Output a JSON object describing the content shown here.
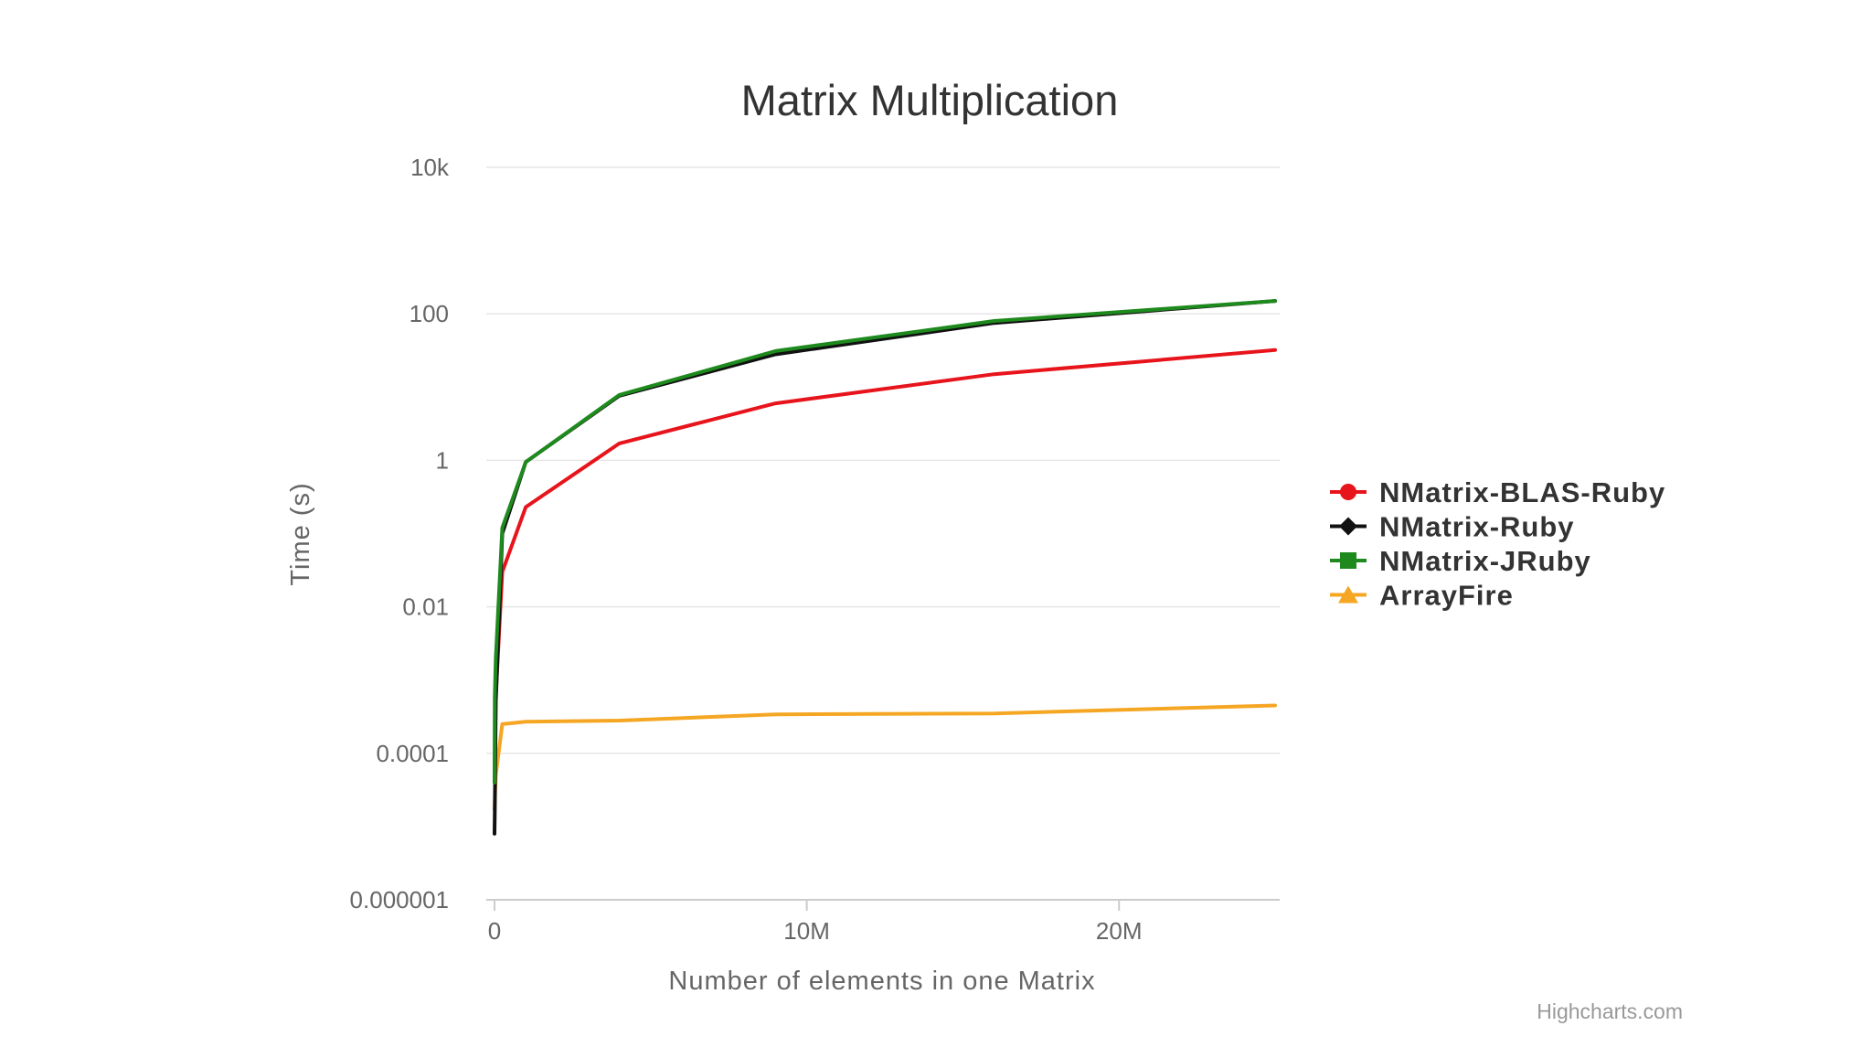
{
  "chart_data": {
    "type": "line",
    "title": "Matrix Multiplication",
    "xlabel": "Number of elements in one Matrix",
    "ylabel": "Time (s)",
    "y_scale": "log",
    "ylim": [
      1e-06,
      10000
    ],
    "xlim": [
      0,
      25000000
    ],
    "y_ticks": [
      {
        "value": 1e-06,
        "label": "0.000001"
      },
      {
        "value": 0.0001,
        "label": "0.0001"
      },
      {
        "value": 0.01,
        "label": "0.01"
      },
      {
        "value": 1,
        "label": "1"
      },
      {
        "value": 100,
        "label": "100"
      },
      {
        "value": 10000,
        "label": "10k"
      }
    ],
    "x_ticks": [
      {
        "value": 0,
        "label": "0"
      },
      {
        "value": 10000000,
        "label": "10M"
      },
      {
        "value": 20000000,
        "label": "20M"
      }
    ],
    "grid": true,
    "legend_position": "right",
    "credits": "Highcharts.com",
    "series": [
      {
        "name": "NMatrix-BLAS-Ruby",
        "color": "#e8141c",
        "marker": "circle",
        "x": [
          100,
          10000,
          40000,
          250000,
          1000000,
          4000000,
          9000000,
          16000000,
          25000000
        ],
        "y": [
          4e-05,
          7e-05,
          0.0006,
          0.03,
          0.23,
          1.7,
          6.0,
          15.0,
          32.0
        ]
      },
      {
        "name": "NMatrix-Ruby",
        "color": "#111111",
        "marker": "diamond",
        "x": [
          100,
          10000,
          40000,
          250000,
          1000000,
          4000000,
          9000000,
          16000000,
          25000000
        ],
        "y": [
          8e-06,
          1.5e-05,
          0.0005,
          0.1,
          0.95,
          7.6,
          28.0,
          75.0,
          150.0
        ]
      },
      {
        "name": "NMatrix-JRuby",
        "color": "#1e8a1e",
        "marker": "square",
        "x": [
          100,
          10000,
          40000,
          250000,
          1000000,
          4000000,
          9000000,
          16000000,
          25000000
        ],
        "y": [
          4e-05,
          0.0006,
          0.002,
          0.12,
          0.95,
          7.8,
          31.0,
          80.0,
          150.0
        ]
      },
      {
        "name": "ArrayFire",
        "color": "#f5a623",
        "marker": "triangle",
        "x": [
          100,
          10000,
          40000,
          250000,
          1000000,
          4000000,
          9000000,
          16000000,
          25000000
        ],
        "y": [
          1.7e-05,
          2.2e-05,
          5e-05,
          0.00025,
          0.00027,
          0.00028,
          0.00034,
          0.00035,
          0.00045
        ]
      }
    ]
  }
}
